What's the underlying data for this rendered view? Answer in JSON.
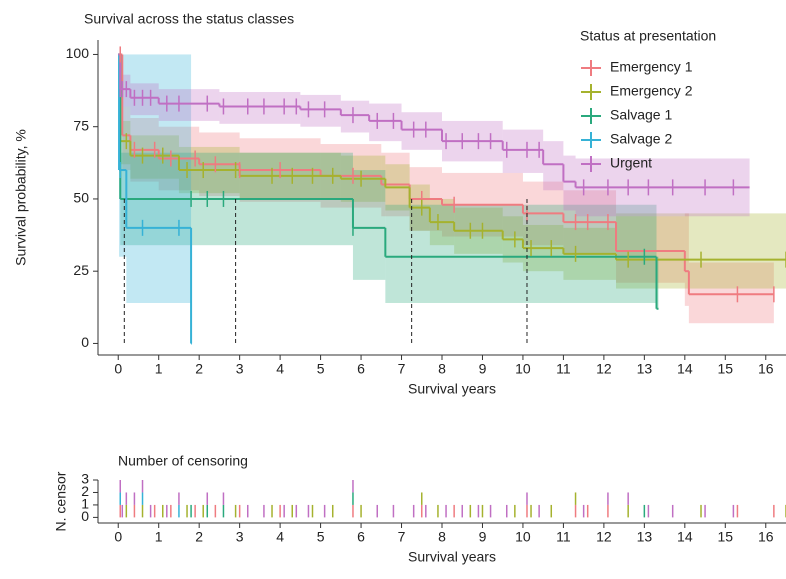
{
  "chart_data": [
    {
      "type": "survival",
      "title": "Survival across the status classes",
      "xlabel": "Survival years",
      "ylabel": "Survival probability, %",
      "xlim": [
        -0.5,
        16.5
      ],
      "ylim": [
        -4,
        105
      ],
      "xticks": [
        0,
        1,
        2,
        3,
        4,
        5,
        6,
        7,
        8,
        9,
        10,
        11,
        12,
        13,
        14,
        15,
        16
      ],
      "yticks": [
        0,
        25,
        50,
        75,
        100
      ],
      "legend_title": "Status at presentation",
      "legend": "upper right",
      "median_level": 50,
      "median_lines": [
        0.15,
        2.9,
        7.25,
        10.1
      ],
      "series": [
        {
          "name": "Emergency 1",
          "color": "#ef7b80",
          "x": [
            0,
            0.1,
            0.3,
            1,
            2,
            3,
            5,
            6.5,
            7.2,
            8,
            10,
            11,
            12.3,
            14,
            14.1
          ],
          "end": 16.2,
          "values": [
            100,
            72,
            67,
            64,
            62,
            60,
            58,
            55,
            50,
            48,
            45,
            42,
            32,
            25,
            17
          ],
          "lower": [
            100,
            60,
            56,
            53,
            51,
            49,
            47,
            44,
            39,
            37,
            34,
            31,
            21,
            13,
            7
          ],
          "upper": [
            100,
            82,
            78,
            75,
            73,
            71,
            69,
            66,
            61,
            59,
            56,
            53,
            44,
            45,
            28
          ],
          "censored": [
            0.05,
            0.4,
            0.9,
            1.3,
            1.9,
            2.4,
            3.0,
            4.0,
            5.8,
            7.5,
            8.3,
            10.1,
            11.3,
            11.6,
            12.1,
            15.3,
            16.2
          ]
        },
        {
          "name": "Emergency 2",
          "color": "#a5b22e",
          "x": [
            0,
            0.05,
            0.3,
            1.5,
            3,
            5.5,
            6.6,
            7.2,
            7.7,
            8.3,
            9.5,
            10,
            11,
            12.3
          ],
          "end": 16.5,
          "values": [
            100,
            70,
            65,
            60,
            58,
            57,
            54,
            47,
            42,
            39,
            36,
            33,
            31,
            29
          ],
          "lower": [
            100,
            62,
            57,
            52,
            50,
            49,
            46,
            39,
            34,
            31,
            28,
            25,
            22,
            19
          ],
          "upper": [
            100,
            77,
            72,
            68,
            66,
            65,
            62,
            55,
            50,
            47,
            44,
            41,
            40,
            45
          ],
          "censored": [
            0.2,
            0.6,
            1.1,
            1.7,
            2.1,
            2.9,
            3.8,
            4.3,
            4.8,
            5.3,
            6.0,
            7.5,
            7.9,
            8.7,
            9.0,
            9.8,
            10.2,
            10.7,
            11.3,
            12.6,
            14.4,
            16.5
          ]
        },
        {
          "name": "Salvage 1",
          "color": "#2aa97d",
          "x": [
            0,
            0.05,
            5.8,
            6.6,
            13.3
          ],
          "end": 13.35,
          "values": [
            100,
            50,
            40,
            30,
            12
          ],
          "lower": [
            100,
            34,
            22,
            14,
            12
          ],
          "upper": [
            100,
            66,
            60,
            48,
            30
          ],
          "censored": [
            1.8,
            2.2,
            2.6,
            5.8,
            13.0
          ]
        },
        {
          "name": "Salvage 2",
          "color": "#36b2d6",
          "x": [
            0,
            0.02,
            0.2,
            1.8
          ],
          "end": 1.82,
          "values": [
            100,
            60,
            40,
            0
          ],
          "lower": [
            100,
            30,
            14,
            0
          ],
          "upper": [
            100,
            100,
            100,
            0
          ],
          "censored": [
            0.05,
            0.6,
            1.5
          ]
        },
        {
          "name": "Urgent",
          "color": "#c06fc3",
          "x": [
            0,
            0.05,
            0.3,
            1,
            2.5,
            4.5,
            5.5,
            6.2,
            7,
            8,
            9.5,
            10.5,
            11,
            11.3
          ],
          "end": 15.6,
          "values": [
            100,
            88,
            85,
            83,
            82,
            81,
            79,
            77,
            74,
            70,
            67,
            62,
            56,
            54
          ],
          "lower": [
            100,
            82,
            79,
            77,
            76,
            75,
            73,
            70,
            67,
            63,
            59,
            53,
            46,
            44
          ],
          "upper": [
            100,
            93,
            90,
            88,
            87,
            86,
            84,
            83,
            80,
            77,
            74,
            70,
            65,
            64
          ],
          "censored": [
            0.05,
            0.1,
            0.2,
            0.4,
            0.6,
            0.8,
            1.2,
            1.5,
            2.2,
            2.6,
            3.2,
            3.6,
            4.1,
            4.4,
            4.7,
            5.1,
            5.8,
            6.4,
            6.8,
            7.3,
            7.6,
            8.1,
            8.5,
            8.9,
            9.2,
            9.6,
            10.1,
            10.4,
            11.5,
            12.1,
            12.6,
            13.1,
            13.7,
            14.5,
            15.2
          ]
        }
      ]
    },
    {
      "type": "censor-counts",
      "title": "Number of censoring",
      "xlabel": "Survival years",
      "ylabel": "N. censor",
      "xlim": [
        -0.5,
        16.5
      ],
      "ylim": [
        -0.45,
        3
      ],
      "xticks": [
        0,
        1,
        2,
        3,
        4,
        5,
        6,
        7,
        8,
        9,
        10,
        11,
        12,
        13,
        14,
        15,
        16
      ],
      "yticks": [
        0,
        1,
        2,
        3
      ]
    }
  ]
}
